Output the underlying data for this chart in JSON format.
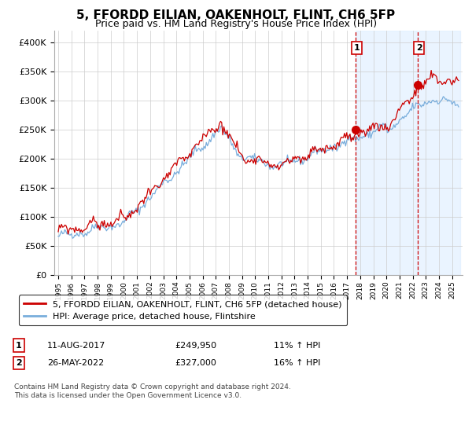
{
  "title": "5, FFORDD EILIAN, OAKENHOLT, FLINT, CH6 5FP",
  "subtitle": "Price paid vs. HM Land Registry's House Price Index (HPI)",
  "ylim": [
    0,
    420000
  ],
  "yticks": [
    0,
    50000,
    100000,
    150000,
    200000,
    250000,
    300000,
    350000,
    400000
  ],
  "ytick_labels": [
    "£0",
    "£50K",
    "£100K",
    "£150K",
    "£200K",
    "£250K",
    "£300K",
    "£350K",
    "£400K"
  ],
  "sale1_year": 2017.625,
  "sale1_price": 249950,
  "sale1_date": "11-AUG-2017",
  "sale1_hpi_diff": "11% ↑ HPI",
  "sale2_year": 2022.375,
  "sale2_price": 327000,
  "sale2_date": "26-MAY-2022",
  "sale2_hpi_diff": "16% ↑ HPI",
  "legend1": "5, FFORDD EILIAN, OAKENHOLT, FLINT, CH6 5FP (detached house)",
  "legend2": "HPI: Average price, detached house, Flintshire",
  "footer": "Contains HM Land Registry data © Crown copyright and database right 2024.\nThis data is licensed under the Open Government Licence v3.0.",
  "line_red": "#cc0000",
  "line_blue": "#7aaedc",
  "vline_color": "#cc0000",
  "bg_highlight": "#ddeeff",
  "title_fontsize": 11,
  "subtitle_fontsize": 9,
  "tick_fontsize": 8
}
